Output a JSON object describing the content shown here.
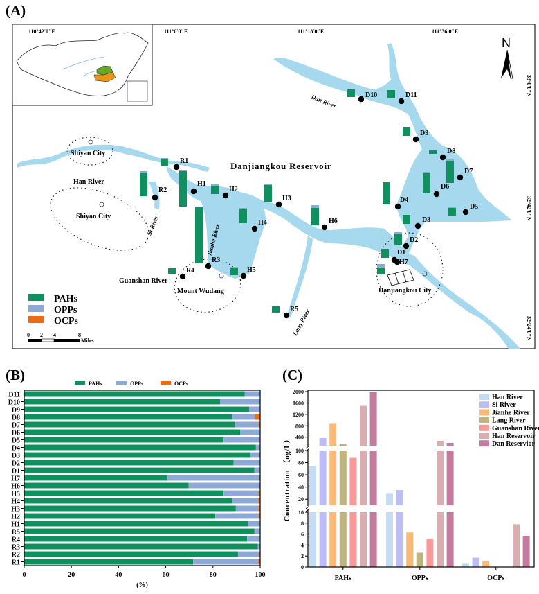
{
  "panel_labels": {
    "a": "(A)",
    "b": "(B)",
    "c": "(C)"
  },
  "map": {
    "lon_ticks": [
      "110°42'0\"E",
      "111°0'0\"E",
      "111°18'0\"E",
      "111°36'0\"E"
    ],
    "lat_ticks": [
      "33°0'0\"N",
      "32°42'0\"N",
      "32°24'0\"N"
    ],
    "north": "N",
    "title": "Danjiangkou Reservoir",
    "places": {
      "shiyan1": "Shiyan City",
      "shiyan2": "Shiyan City",
      "wudang": "Mount Wudang",
      "danjiangkou": "Danjiangkou City"
    },
    "rivers": {
      "han": "Han River",
      "si": "Si River",
      "jianhe": "Jianhe River",
      "guanshan": "Guanshan River",
      "lang": "Lang River",
      "dan": "Dan River"
    },
    "legend": [
      "PAHs",
      "OPPs",
      "OCPs"
    ],
    "scale": {
      "ticks": [
        "0",
        "2",
        "4",
        "8"
      ],
      "unit": "Miles"
    },
    "sites": [
      "D10",
      "D11",
      "D9",
      "D8",
      "D7",
      "D6",
      "D5",
      "D4",
      "D3",
      "D2",
      "D1",
      "H7",
      "H6",
      "H5",
      "H4",
      "H3",
      "H2",
      "H1",
      "R1",
      "R2",
      "R3",
      "R4",
      "R5"
    ]
  },
  "colors": {
    "pahs": "#11905f",
    "opps": "#8ea9d6",
    "ocps": "#ef6a17",
    "water": "#a6d9ee"
  },
  "chart_data": [
    {
      "type": "bar",
      "orientation": "horizontal-stacked",
      "title": "(B)",
      "xlabel": "(%)",
      "ylabel": "",
      "xlim": [
        0,
        100
      ],
      "x_ticks": [
        "0",
        "20",
        "40",
        "60",
        "80",
        "100"
      ],
      "legend_position": "top",
      "categories": [
        "D11",
        "D10",
        "D9",
        "D8",
        "D7",
        "D6",
        "D5",
        "D4",
        "D3",
        "D2",
        "D1",
        "H7",
        "H6",
        "H5",
        "H4",
        "H3",
        "H2",
        "H1",
        "R5",
        "R4",
        "R3",
        "R2",
        "R1"
      ],
      "series": [
        {
          "name": "PAHs",
          "values": [
            93.5,
            83,
            95.3,
            88.3,
            89.5,
            91.5,
            84.5,
            98.2,
            96,
            88.7,
            97.5,
            60.7,
            69.7,
            84.5,
            88,
            89.7,
            81,
            94.8,
            97.6,
            94.5,
            99,
            90.6,
            71.6
          ]
        },
        {
          "name": "OPPs",
          "values": [
            6.5,
            17,
            4.7,
            9.5,
            10,
            8.3,
            15.5,
            1.8,
            3.7,
            11,
            2.5,
            39,
            30,
            15,
            11.3,
            9.7,
            18.5,
            5.2,
            2.4,
            5.5,
            1,
            9,
            27.6
          ]
        },
        {
          "name": "OCPs",
          "values": [
            0,
            0,
            0,
            2.2,
            0.5,
            0.2,
            0,
            0,
            0.3,
            0.3,
            0,
            0.3,
            0.3,
            0.5,
            0.7,
            0.6,
            0.5,
            0,
            0,
            0,
            0,
            0.4,
            0.8
          ]
        }
      ]
    },
    {
      "type": "bar",
      "orientation": "grouped-broken-axis",
      "title": "(C)",
      "xlabel": "",
      "ylabel": "Concentration （ng/L）",
      "y_segments": [
        [
          0,
          10
        ],
        [
          10,
          100
        ],
        [
          100,
          2000
        ]
      ],
      "y_ticks": [
        [
          "0",
          "2",
          "4",
          "6",
          "8",
          "10"
        ],
        [
          "20",
          "40",
          "60",
          "80",
          "100"
        ],
        [
          "400",
          "800",
          "1200",
          "1600",
          "2000"
        ]
      ],
      "legend_position": "top-right",
      "categories": [
        "PAHs",
        "OPPs",
        "OCPs"
      ],
      "series": [
        {
          "name": "Han River",
          "color": "#c6dcf5",
          "values": [
            75,
            29,
            0.7
          ]
        },
        {
          "name": "Si River",
          "color": "#bcbcf7",
          "values": [
            370,
            35,
            1.7
          ]
        },
        {
          "name": "Jianhe River",
          "color": "#fbb978",
          "values": [
            870,
            6.3,
            1.1
          ]
        },
        {
          "name": "Lang River",
          "color": "#bdb47e",
          "values": [
            150,
            2.6,
            0
          ]
        },
        {
          "name": "Guanshan River",
          "color": "#f99a9a",
          "values": [
            88,
            5.1,
            0
          ]
        },
        {
          "name": "Han Reservoir",
          "color": "#d9aeb0",
          "values": [
            1500,
            270,
            7.8
          ]
        },
        {
          "name": "Dan Reservior",
          "color": "#c47b9d",
          "values": [
            2000,
            200,
            5.6
          ]
        }
      ]
    }
  ]
}
